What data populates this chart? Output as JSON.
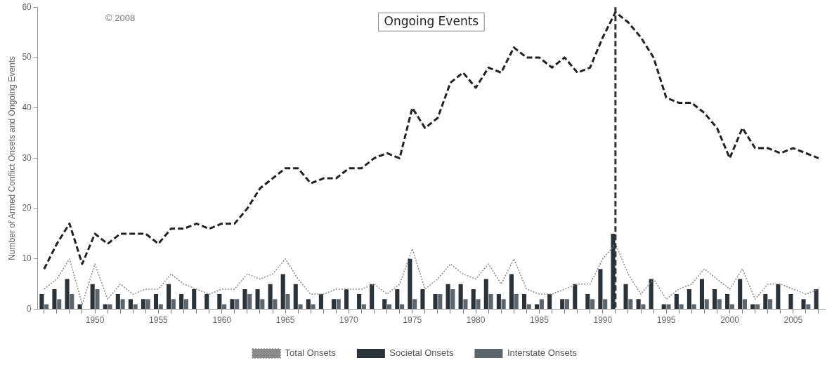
{
  "chart_data": {
    "type": "bar",
    "x": [
      1946,
      1947,
      1948,
      1949,
      1950,
      1951,
      1952,
      1953,
      1954,
      1955,
      1956,
      1957,
      1958,
      1959,
      1960,
      1961,
      1962,
      1963,
      1964,
      1965,
      1966,
      1967,
      1968,
      1969,
      1970,
      1971,
      1972,
      1973,
      1974,
      1975,
      1976,
      1977,
      1978,
      1979,
      1980,
      1981,
      1982,
      1983,
      1984,
      1985,
      1986,
      1987,
      1988,
      1989,
      1990,
      1991,
      1992,
      1993,
      1994,
      1995,
      1996,
      1997,
      1998,
      1999,
      2000,
      2001,
      2002,
      2003,
      2004,
      2005,
      2006,
      2007
    ],
    "series": [
      {
        "name": "Ongoing Events",
        "type": "line",
        "line_style": "dashed",
        "color": "#222222",
        "values": [
          8,
          13,
          17,
          9,
          15,
          13,
          15,
          15,
          15,
          13,
          16,
          16,
          17,
          16,
          17,
          17,
          20,
          24,
          26,
          28,
          28,
          25,
          26,
          26,
          28,
          28,
          30,
          31,
          30,
          40,
          36,
          38,
          45,
          47,
          44,
          48,
          47,
          52,
          50,
          50,
          48,
          50,
          47,
          48,
          54,
          59,
          57,
          54,
          50,
          42,
          41,
          41,
          39,
          36,
          30,
          36,
          32,
          32,
          31,
          32,
          31,
          30
        ]
      },
      {
        "name": "Total Onsets",
        "type": "line",
        "line_style": "dotted",
        "color": "#8a8a8a",
        "values": [
          4,
          6,
          10,
          1,
          9,
          2,
          5,
          3,
          4,
          4,
          7,
          5,
          4,
          3,
          4,
          4,
          7,
          6,
          7,
          10,
          6,
          3,
          3,
          4,
          4,
          4,
          5,
          3,
          5,
          12,
          4,
          6,
          9,
          7,
          6,
          9,
          5,
          10,
          4,
          3,
          3,
          4,
          5,
          5,
          10,
          13,
          7,
          3,
          6,
          2,
          4,
          5,
          8,
          6,
          4,
          8,
          2,
          5,
          5,
          4,
          3,
          4
        ]
      },
      {
        "name": "Societal Onsets",
        "type": "bar",
        "color": "#2b3238",
        "values": [
          3,
          4,
          6,
          1,
          5,
          1,
          3,
          2,
          2,
          3,
          5,
          3,
          4,
          3,
          3,
          2,
          4,
          4,
          5,
          7,
          5,
          2,
          3,
          2,
          4,
          3,
          5,
          2,
          4,
          10,
          4,
          3,
          5,
          5,
          4,
          6,
          3,
          7,
          3,
          1,
          3,
          2,
          5,
          3,
          8,
          15,
          5,
          2,
          6,
          1,
          3,
          4,
          6,
          4,
          3,
          6,
          1,
          3,
          5,
          3,
          2,
          4
        ]
      },
      {
        "name": "Interstate Onsets",
        "type": "bar",
        "color": "#5e666d",
        "values": [
          1,
          2,
          3,
          0,
          4,
          1,
          2,
          1,
          2,
          1,
          2,
          2,
          0,
          0,
          1,
          2,
          3,
          2,
          2,
          3,
          1,
          1,
          0,
          2,
          0,
          1,
          0,
          1,
          1,
          2,
          0,
          3,
          4,
          2,
          2,
          3,
          2,
          3,
          1,
          2,
          0,
          2,
          0,
          2,
          2,
          0,
          2,
          1,
          0,
          1,
          1,
          1,
          2,
          2,
          1,
          2,
          1,
          2,
          0,
          0,
          1,
          0
        ]
      }
    ],
    "ylabel": "Number of Armed Conflict Onsets and Ongoing Events",
    "xlim": [
      1945.5,
      2007.5
    ],
    "xticks": [
      {
        "value": 1946,
        "label": null
      },
      {
        "value": 1947,
        "label": null
      },
      {
        "value": 1948,
        "label": null
      },
      {
        "value": 1949,
        "label": null
      },
      1950,
      {
        "value": 1951,
        "label": null
      },
      {
        "value": 1952,
        "label": null
      },
      {
        "value": 1953,
        "label": null
      },
      {
        "value": 1954,
        "label": null
      },
      1955,
      {
        "value": 1956,
        "label": null
      },
      {
        "value": 1957,
        "label": null
      },
      {
        "value": 1958,
        "label": null
      },
      {
        "value": 1959,
        "label": null
      },
      1960,
      {
        "value": 1961,
        "label": null
      },
      {
        "value": 1962,
        "label": null
      },
      {
        "value": 1963,
        "label": null
      },
      {
        "value": 1964,
        "label": null
      },
      1965,
      {
        "value": 1966,
        "label": null
      },
      {
        "value": 1967,
        "label": null
      },
      {
        "value": 1968,
        "label": null
      },
      {
        "value": 1969,
        "label": null
      },
      1970,
      {
        "value": 1971,
        "label": null
      },
      {
        "value": 1972,
        "label": null
      },
      {
        "value": 1973,
        "label": null
      },
      {
        "value": 1974,
        "label": null
      },
      1975,
      {
        "value": 1976,
        "label": null
      },
      {
        "value": 1977,
        "label": null
      },
      {
        "value": 1978,
        "label": null
      },
      {
        "value": 1979,
        "label": null
      },
      1980,
      {
        "value": 1981,
        "label": null
      },
      {
        "value": 1982,
        "label": null
      },
      {
        "value": 1983,
        "label": null
      },
      {
        "value": 1984,
        "label": null
      },
      1985,
      {
        "value": 1986,
        "label": null
      },
      {
        "value": 1987,
        "label": null
      },
      {
        "value": 1988,
        "label": null
      },
      {
        "value": 1989,
        "label": null
      },
      1990,
      {
        "value": 1991,
        "label": null
      },
      {
        "value": 1992,
        "label": null
      },
      {
        "value": 1993,
        "label": null
      },
      {
        "value": 1994,
        "label": null
      },
      1995,
      {
        "value": 1996,
        "label": null
      },
      {
        "value": 1997,
        "label": null
      },
      {
        "value": 1998,
        "label": null
      },
      {
        "value": 1999,
        "label": null
      },
      2000,
      {
        "value": 2001,
        "label": null
      },
      {
        "value": 2002,
        "label": null
      },
      {
        "value": 2003,
        "label": null
      },
      {
        "value": 2004,
        "label": null
      },
      2005,
      {
        "value": 2006,
        "label": null
      },
      {
        "value": 2007,
        "label": null
      }
    ],
    "ylim": [
      0,
      60
    ],
    "yticks": [
      0,
      10,
      20,
      30,
      40,
      50,
      60
    ],
    "ref_lines": [
      {
        "axis": "x",
        "value": 1991,
        "color": "#333333",
        "line_style": "dashed"
      }
    ],
    "annotations": [
      "© 2008"
    ],
    "grid": false,
    "legend": "bottom"
  }
}
